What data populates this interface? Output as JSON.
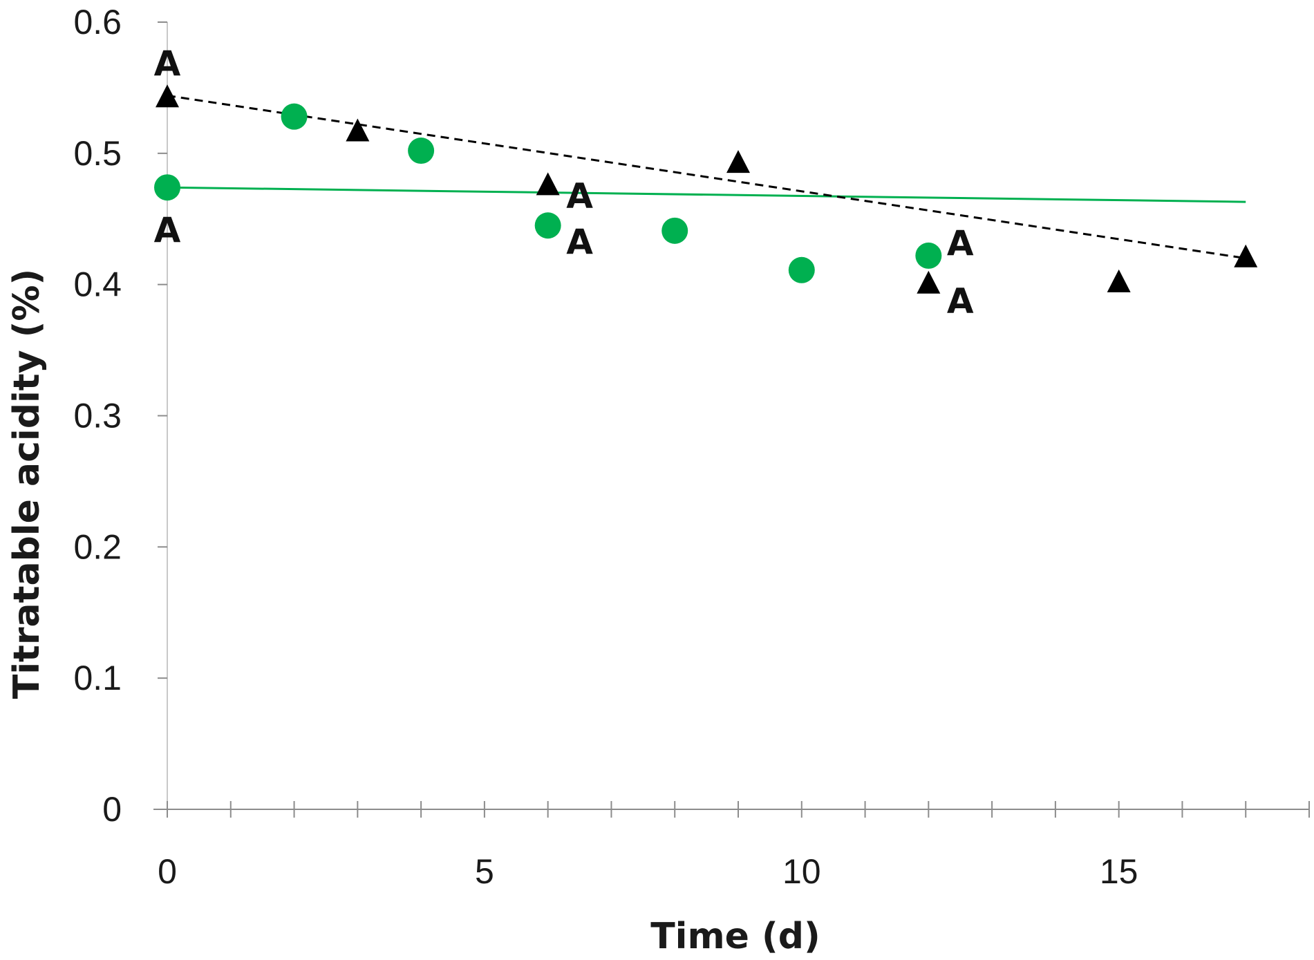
{
  "chart_data": {
    "type": "scatter",
    "title": "",
    "xlabel": "Time (d)",
    "ylabel": "Titratable acidity (%)",
    "xlim": [
      0,
      18
    ],
    "ylim": [
      0,
      0.6
    ],
    "x_ticks": [
      0,
      5,
      10,
      15
    ],
    "x_tick_labels": [
      "0",
      "5",
      "10",
      "15"
    ],
    "x_minor_step": 1,
    "y_ticks": [
      0,
      0.1,
      0.2,
      0.3,
      0.4,
      0.5,
      0.6
    ],
    "y_tick_labels": [
      "0",
      "0.1",
      "0.2",
      "0.3",
      "0.4",
      "0.5",
      "0.6"
    ],
    "grid": false,
    "colors": {
      "green": "#00b050",
      "black": "#000000"
    },
    "series": [
      {
        "name": "circles",
        "marker": "circle",
        "color": "#00b050",
        "x": [
          0,
          2,
          4,
          6,
          8,
          10,
          12
        ],
        "y": [
          0.474,
          0.528,
          0.502,
          0.445,
          0.441,
          0.411,
          0.422
        ],
        "trendline": {
          "style": "solid",
          "x": [
            0,
            17
          ],
          "y": [
            0.474,
            0.463
          ]
        }
      },
      {
        "name": "triangles",
        "marker": "triangle",
        "color": "#000000",
        "x": [
          0,
          3,
          6,
          9,
          12,
          15,
          17
        ],
        "y": [
          0.543,
          0.517,
          0.476,
          0.493,
          0.401,
          0.402,
          0.421
        ],
        "trendline": {
          "style": "dashed",
          "x": [
            0,
            17
          ],
          "y": [
            0.544,
            0.42
          ]
        }
      }
    ],
    "annotations": [
      {
        "text": "A",
        "x": 0,
        "y": 0.569
      },
      {
        "text": "A",
        "x": 0,
        "y": 0.442
      },
      {
        "text": "A",
        "x": 6.5,
        "y": 0.468
      },
      {
        "text": "A",
        "x": 6.5,
        "y": 0.433
      },
      {
        "text": "A",
        "x": 12.5,
        "y": 0.432
      },
      {
        "text": "A",
        "x": 12.5,
        "y": 0.388
      }
    ]
  }
}
